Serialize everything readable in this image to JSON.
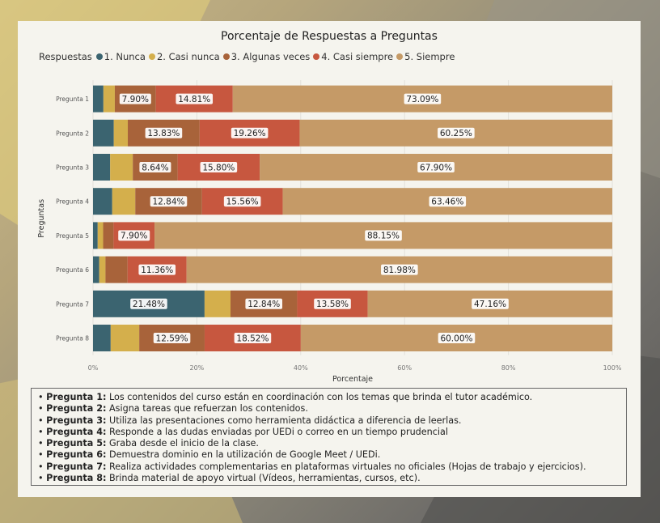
{
  "chart_data": {
    "type": "bar",
    "orientation": "horizontal",
    "stacked": true,
    "title": "Porcentaje de Respuestas a Preguntas",
    "xlabel": "Porcentaje",
    "ylabel": "Preguntas",
    "legend_title": "Respuestas",
    "legend_position": "top-left",
    "xlim": [
      0,
      100
    ],
    "x_ticks": [
      "0%",
      "20%",
      "40%",
      "60%",
      "80%",
      "100%"
    ],
    "grid": true,
    "categories": [
      "Pregunta 1",
      "Pregunta 2",
      "Pregunta 3",
      "Pregunta 4",
      "Pregunta 5",
      "Pregunta 6",
      "Pregunta 7",
      "Pregunta 8"
    ],
    "series": [
      {
        "name": "1. Nunca",
        "color": "#3b6470",
        "values": [
          2.0,
          4.0,
          3.3,
          3.7,
          0.9,
          1.2,
          21.48,
          3.4
        ]
      },
      {
        "name": "2. Casi nunca",
        "color": "#d4af4c",
        "values": [
          2.2,
          2.7,
          4.36,
          4.44,
          1.05,
          1.2,
          5.0,
          5.5
        ]
      },
      {
        "name": "3. Algunas veces",
        "color": "#a8633a",
        "values": [
          7.9,
          13.83,
          8.64,
          12.84,
          2.0,
          4.26,
          12.84,
          12.59
        ]
      },
      {
        "name": "4. Casi siempre",
        "color": "#c7573f",
        "values": [
          14.81,
          19.26,
          15.8,
          15.56,
          7.9,
          11.36,
          13.58,
          18.52
        ]
      },
      {
        "name": "5. Siempre",
        "color": "#c59a67",
        "values": [
          73.09,
          60.25,
          67.9,
          63.46,
          88.15,
          81.98,
          47.16,
          60.0
        ]
      }
    ],
    "data_labels": [
      [
        null,
        null,
        "7.90%",
        "14.81%",
        "73.09%"
      ],
      [
        null,
        null,
        "13.83%",
        "19.26%",
        "60.25%"
      ],
      [
        null,
        null,
        "8.64%",
        "15.80%",
        "67.90%"
      ],
      [
        null,
        null,
        "12.84%",
        "15.56%",
        "63.46%"
      ],
      [
        null,
        null,
        null,
        "7.90%",
        "88.15%"
      ],
      [
        null,
        null,
        null,
        "11.36%",
        "81.98%"
      ],
      [
        "21.48%",
        null,
        "12.84%",
        "13.58%",
        "47.16%"
      ],
      [
        null,
        null,
        "12.59%",
        "18.52%",
        "60.00%"
      ]
    ]
  },
  "notes": [
    {
      "label": "Pregunta 1:",
      "text": " Los contenidos del curso están en coordinación con los temas que brinda el tutor académico."
    },
    {
      "label": "Pregunta 2:",
      "text": " Asigna tareas que refuerzan los contenidos."
    },
    {
      "label": "Pregunta 3:",
      "text": " Utiliza las presentaciones como herramienta didáctica a diferencia de leerlas."
    },
    {
      "label": "Pregunta 4:",
      "text": " Responde a las dudas enviadas por UEDi o correo en un tiempo prudencial"
    },
    {
      "label": "Pregunta 5:",
      "text": " Graba desde el inicio de la clase."
    },
    {
      "label": "Pregunta 6:",
      "text": " Demuestra dominio en la utilización de Google Meet / UEDi."
    },
    {
      "label": "Pregunta 7:",
      "text": " Realiza actividades complementarias en plataformas virtuales no oficiales (Hojas de trabajo y ejercicios)."
    },
    {
      "label": "Pregunta 8:",
      "text": " Brinda material de apoyo virtual (Vídeos, herramientas, cursos, etc)."
    }
  ]
}
